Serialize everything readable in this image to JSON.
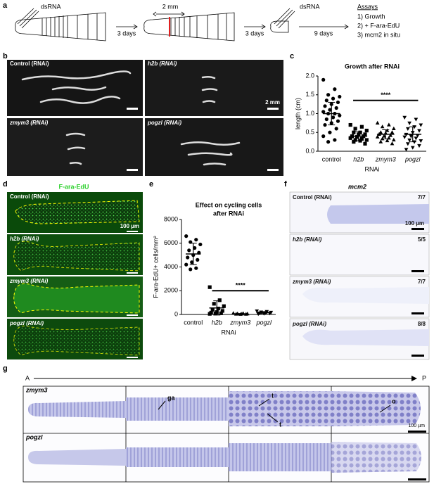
{
  "panel_a": {
    "label": "a",
    "dsrna1": "dsRNA",
    "days1": "3 days",
    "mm": "2 mm",
    "days2": "3 days",
    "dsrna2": "dsRNA",
    "days3": "9 days",
    "assays_title": "Assays",
    "assays": [
      "1) Growth",
      "2) + F-ara-EdU",
      "3) mcm2 in situ"
    ]
  },
  "panel_b": {
    "label": "b",
    "images": [
      "Control (RNAi)",
      "h2b (RNAi)",
      "zmym3 (RNAi)",
      "pogzl (RNAi)"
    ],
    "scale": "2 mm"
  },
  "panel_c": {
    "label": "c",
    "chart_data": {
      "type": "scatter",
      "title": "Growth after RNAi",
      "y_label": "length (cm)",
      "x_label": "RNAi",
      "categories": [
        "control",
        "h2b",
        "zmym3",
        "pogzl"
      ],
      "markers": [
        "circle",
        "square",
        "triangle-up",
        "triangle-down"
      ],
      "points": [
        [
          1.9,
          1.65,
          1.5,
          1.45,
          1.4,
          1.35,
          1.3,
          1.25,
          1.2,
          1.15,
          1.1,
          1.05,
          1.0,
          1.0,
          0.95,
          0.9,
          0.85,
          0.8,
          0.75,
          0.7,
          0.6,
          0.5,
          0.4,
          0.3,
          0.25
        ],
        [
          0.7,
          0.65,
          0.6,
          0.55,
          0.5,
          0.5,
          0.45,
          0.45,
          0.4,
          0.4,
          0.38,
          0.35,
          0.33,
          0.3,
          0.3,
          0.28,
          0.25,
          0.2
        ],
        [
          0.75,
          0.7,
          0.65,
          0.6,
          0.55,
          0.5,
          0.5,
          0.48,
          0.45,
          0.42,
          0.4,
          0.38,
          0.35,
          0.33,
          0.3,
          0.28,
          0.25,
          0.2
        ],
        [
          0.9,
          0.85,
          0.75,
          0.7,
          0.65,
          0.6,
          0.55,
          0.5,
          0.45,
          0.42,
          0.4,
          0.38,
          0.35,
          0.3,
          0.28,
          0.25,
          0.2,
          0.15,
          0.1,
          0.05
        ]
      ],
      "means": [
        1.0,
        0.4,
        0.45,
        0.45
      ],
      "sds": [
        0.3,
        0.12,
        0.12,
        0.2
      ],
      "significance": {
        "label": "****",
        "y": 1.35
      },
      "ylim": [
        0,
        2.0
      ],
      "yticks": [
        {
          "value": 0,
          "label": "0.0"
        },
        0.5,
        {
          "value": 1,
          "label": "1.0"
        },
        1.5,
        {
          "value": 2,
          "label": "2.0"
        }
      ]
    }
  },
  "panel_d": {
    "label": "d",
    "title": "F-ara-EdU",
    "images": [
      "Control (RNAi)",
      "h2b (RNAi)",
      "zmym3 (RNAi)",
      "pogzl (RNAi)"
    ],
    "scale": "100 µm"
  },
  "panel_e": {
    "label": "e",
    "chart_data": {
      "type": "scatter",
      "title": [
        "Effect on cycling cells",
        "after RNAi"
      ],
      "y_label": "F-ara-EdU+ cells/mm²",
      "x_label": "RNAi",
      "categories": [
        "control",
        "h2b",
        "zmym3",
        "pogzl"
      ],
      "markers": [
        "circle",
        "square",
        "triangle-up",
        "triangle-down"
      ],
      "points": [
        [
          6600,
          6300,
          6100,
          5900,
          5600,
          5400,
          5200,
          5000,
          4800,
          4600,
          4400,
          4200,
          3900,
          3800
        ],
        [
          2300,
          1200,
          900,
          700,
          500,
          400,
          300,
          200,
          150,
          100,
          80,
          50
        ],
        [
          100,
          80,
          60,
          50,
          40,
          30,
          20,
          10
        ],
        [
          300,
          250,
          200,
          180,
          150,
          120,
          100,
          80,
          50
        ]
      ],
      "means": [
        5100,
        550,
        50,
        160
      ],
      "sds": [
        900,
        600,
        30,
        80
      ],
      "significance": {
        "label": "****",
        "y": 2000
      },
      "ylim": [
        0,
        8000
      ],
      "yticks": [
        0,
        2000,
        4000,
        6000,
        8000
      ]
    }
  },
  "panel_f": {
    "label": "f",
    "title": "mcm2",
    "images": [
      {
        "name": "Control (RNAi)",
        "count": "7/7"
      },
      {
        "name": "h2b (RNAi)",
        "count": "5/5"
      },
      {
        "name": "zmym3 (RNAi)",
        "count": "7/7"
      },
      {
        "name": "pogzl (RNAi)",
        "count": "8/8"
      }
    ],
    "scale": "100 µm"
  },
  "panel_g": {
    "label": "g",
    "anterior": "A",
    "posterior": "P",
    "rows": [
      "zmym3",
      "pogzl"
    ],
    "annotations": [
      "ga",
      "t",
      "t",
      "o"
    ],
    "scale": "100 µm"
  }
}
